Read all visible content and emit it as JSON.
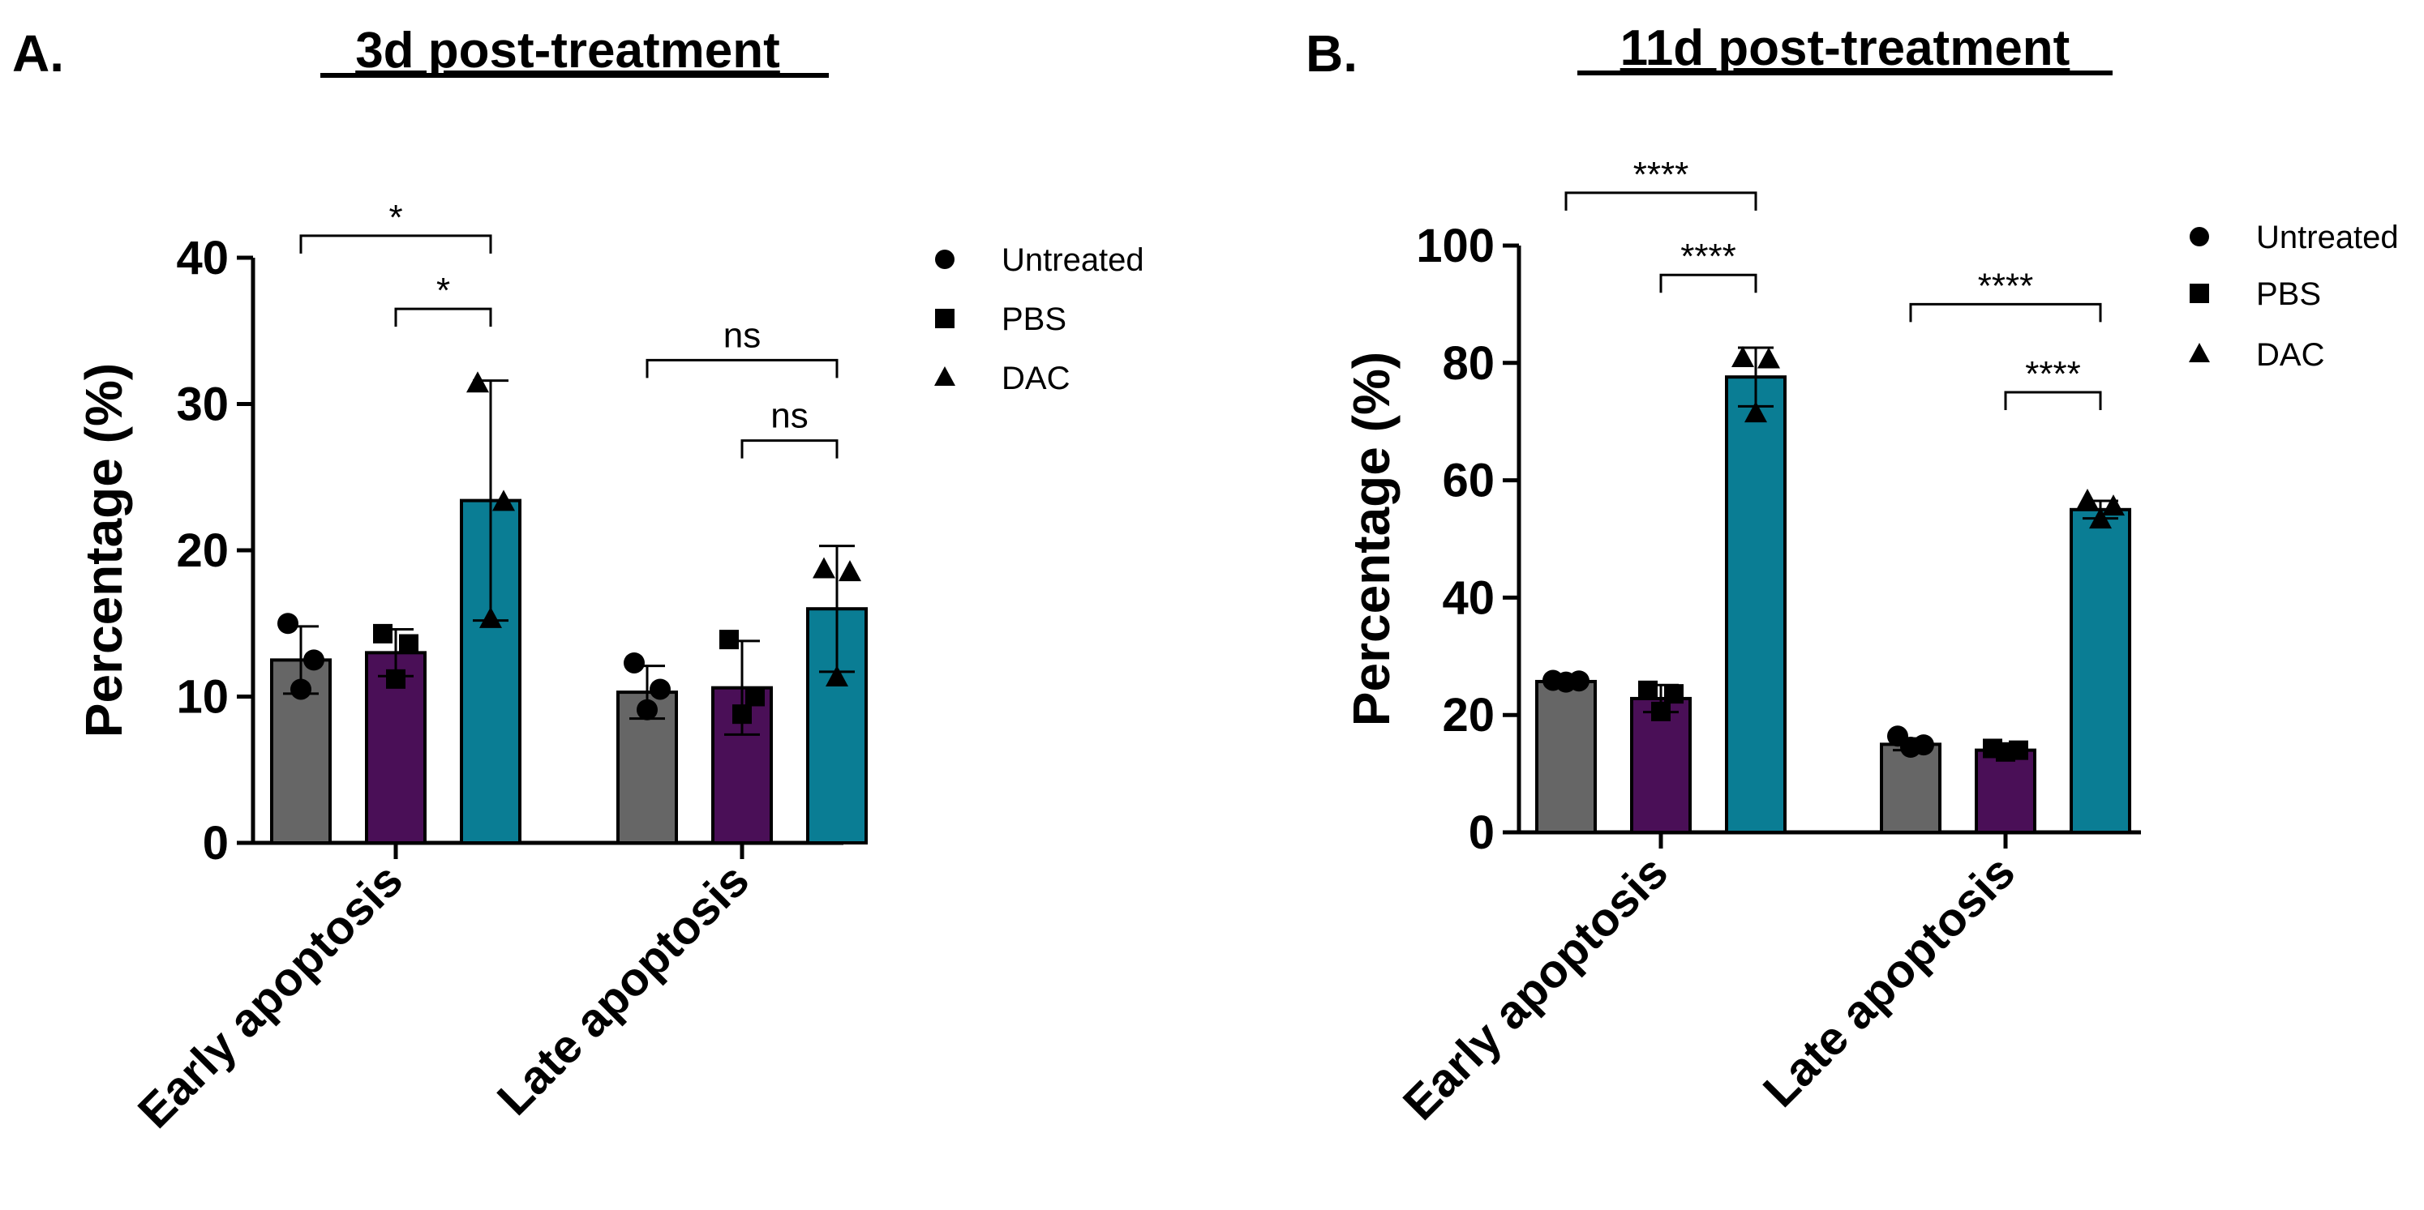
{
  "chart_data": [
    {
      "panel": "A.",
      "type": "bar",
      "title": "3d post-treatment",
      "xlabel": "",
      "ylabel": "Percentage (%)",
      "ylim": [
        0,
        40
      ],
      "yticks": [
        0,
        10,
        20,
        30,
        40
      ],
      "categories": [
        "Early apoptosis",
        "Late apoptosis"
      ],
      "series": [
        {
          "name": "Untreated",
          "marker": "circle",
          "color": "#666666",
          "values": [
            12.5,
            10.3
          ],
          "errors": [
            2.3,
            1.8
          ],
          "points": [
            [
              15.0,
              12.5,
              10.5
            ],
            [
              12.3,
              10.5,
              9.1
            ]
          ]
        },
        {
          "name": "PBS",
          "marker": "square",
          "color": "#4a0f57",
          "values": [
            13.0,
            10.6
          ],
          "errors": [
            1.6,
            3.2
          ],
          "points": [
            [
              14.3,
              13.6,
              11.2
            ],
            [
              13.9,
              10.0,
              8.8
            ]
          ]
        },
        {
          "name": "DAC",
          "marker": "triangle",
          "color": "#0a7d94",
          "values": [
            23.4,
            16.0
          ],
          "errors": [
            8.2,
            4.3
          ],
          "points": [
            [
              31.4,
              23.3,
              15.3
            ],
            [
              18.7,
              18.5,
              11.3
            ]
          ]
        }
      ],
      "comparisons": [
        {
          "category": "Early apoptosis",
          "from": "Untreated",
          "to": "DAC",
          "y": 41.5,
          "label": "*"
        },
        {
          "category": "Early apoptosis",
          "from": "PBS",
          "to": "DAC",
          "y": 36.5,
          "label": "*"
        },
        {
          "category": "Late apoptosis",
          "from": "Untreated",
          "to": "DAC",
          "y": 33.0,
          "label": "ns"
        },
        {
          "category": "Late apoptosis",
          "from": "PBS",
          "to": "DAC",
          "y": 27.5,
          "label": "ns"
        }
      ]
    },
    {
      "panel": "B.",
      "type": "bar",
      "title": "11d post-treatment",
      "xlabel": "",
      "ylabel": "Percentage (%)",
      "ylim": [
        0,
        100
      ],
      "yticks": [
        0,
        20,
        40,
        60,
        80,
        100
      ],
      "categories": [
        "Early apoptosis",
        "Late apoptosis"
      ],
      "series": [
        {
          "name": "Untreated",
          "marker": "circle",
          "color": "#666666",
          "values": [
            25.7,
            15.0
          ],
          "errors": [
            0.4,
            1.0
          ],
          "points": [
            [
              25.9,
              25.8,
              25.6
            ],
            [
              16.4,
              14.9,
              14.5
            ]
          ]
        },
        {
          "name": "PBS",
          "marker": "square",
          "color": "#4a0f57",
          "values": [
            22.8,
            14.0
          ],
          "errors": [
            2.3,
            0.4
          ],
          "points": [
            [
              24.2,
              23.6,
              20.6
            ],
            [
              14.3,
              14.0,
              13.7
            ]
          ]
        },
        {
          "name": "DAC",
          "marker": "triangle",
          "color": "#0a7d94",
          "values": [
            77.6,
            55.0
          ],
          "errors": [
            5.0,
            1.5
          ],
          "points": [
            [
              80.8,
              80.6,
              71.4
            ],
            [
              56.5,
              55.5,
              53.3
            ]
          ]
        }
      ],
      "comparisons": [
        {
          "category": "Early apoptosis",
          "from": "Untreated",
          "to": "DAC",
          "y": 109,
          "label": "****"
        },
        {
          "category": "Early apoptosis",
          "from": "PBS",
          "to": "DAC",
          "y": 95,
          "label": "****"
        },
        {
          "category": "Late apoptosis",
          "from": "Untreated",
          "to": "DAC",
          "y": 90,
          "label": "****"
        },
        {
          "category": "Late apoptosis",
          "from": "PBS",
          "to": "DAC",
          "y": 75,
          "label": "****"
        }
      ]
    }
  ]
}
